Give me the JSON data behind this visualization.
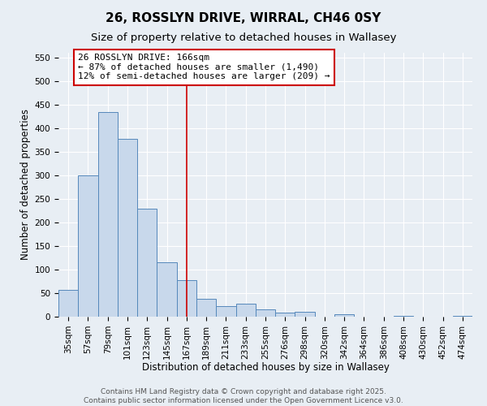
{
  "title": "26, ROSSLYN DRIVE, WIRRAL, CH46 0SY",
  "subtitle": "Size of property relative to detached houses in Wallasey",
  "xlabel": "Distribution of detached houses by size in Wallasey",
  "ylabel": "Number of detached properties",
  "bin_labels": [
    "35sqm",
    "57sqm",
    "79sqm",
    "101sqm",
    "123sqm",
    "145sqm",
    "167sqm",
    "189sqm",
    "211sqm",
    "233sqm",
    "255sqm",
    "276sqm",
    "298sqm",
    "320sqm",
    "342sqm",
    "364sqm",
    "386sqm",
    "408sqm",
    "430sqm",
    "452sqm",
    "474sqm"
  ],
  "bar_values": [
    57,
    300,
    435,
    378,
    230,
    115,
    78,
    38,
    22,
    27,
    16,
    9,
    10,
    0,
    5,
    0,
    0,
    2,
    0,
    0,
    1
  ],
  "bar_color": "#c8d8eb",
  "bar_edge_color": "#5588bb",
  "vline_x_index": 6,
  "vline_color": "#cc0000",
  "annotation_text": "26 ROSSLYN DRIVE: 166sqm\n← 87% of detached houses are smaller (1,490)\n12% of semi-detached houses are larger (209) →",
  "annotation_box_edgecolor": "#cc0000",
  "annotation_box_facecolor": "#ffffff",
  "ylim": [
    0,
    560
  ],
  "yticks": [
    0,
    50,
    100,
    150,
    200,
    250,
    300,
    350,
    400,
    450,
    500,
    550
  ],
  "footer_line1": "Contains HM Land Registry data © Crown copyright and database right 2025.",
  "footer_line2": "Contains public sector information licensed under the Open Government Licence v3.0.",
  "background_color": "#e8eef4",
  "grid_color": "#ffffff",
  "title_fontsize": 11,
  "subtitle_fontsize": 9.5,
  "axis_label_fontsize": 8.5,
  "tick_fontsize": 7.5,
  "annotation_fontsize": 8,
  "footer_fontsize": 6.5
}
